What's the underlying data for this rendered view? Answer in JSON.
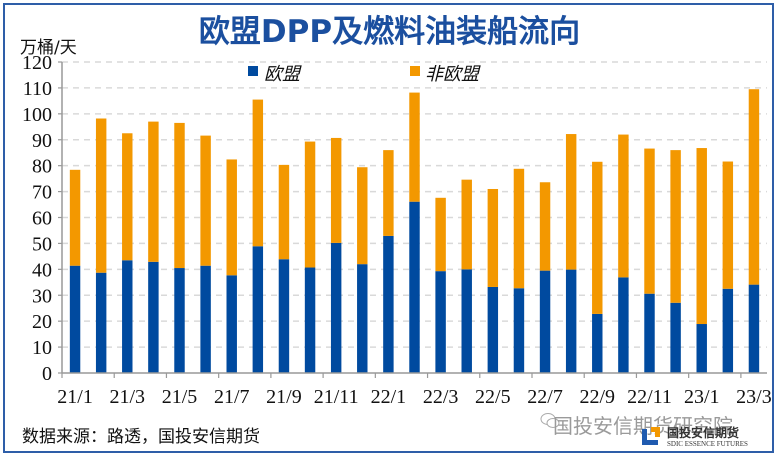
{
  "title": "欧盟DPP及燃料油装船流向",
  "unit_label": "万桶/天",
  "source": "数据来源：路透，国投安信期货",
  "watermark": "国投安信期货研究院",
  "logo": {
    "cn": "国投安信期货",
    "en": "SDIC ESSENCE FUTURES"
  },
  "colors": {
    "eu": "#004a9f",
    "non_eu": "#f39800",
    "title": "#1b4f9f",
    "frame": "#2e5ea8",
    "grid": "#d9d9d9",
    "axis": "#999999"
  },
  "chart_data": {
    "type": "bar",
    "stacked": true,
    "title": "欧盟DPP及燃料油装船流向",
    "ylabel": "万桶/天",
    "xlabel": "",
    "ylim": [
      0,
      120
    ],
    "yticks": [
      0,
      10,
      20,
      30,
      40,
      50,
      60,
      70,
      80,
      90,
      100,
      110,
      120
    ],
    "grid": true,
    "legend_position": "top-center",
    "categories": [
      "21/1",
      "21/2",
      "21/3",
      "21/4",
      "21/5",
      "21/6",
      "21/7",
      "21/8",
      "21/9",
      "21/10",
      "21/11",
      "21/12",
      "22/1",
      "22/2",
      "22/3",
      "22/4",
      "22/5",
      "22/6",
      "22/7",
      "22/8",
      "22/9",
      "22/10",
      "22/11",
      "22/12",
      "23/1",
      "23/2",
      "23/3"
    ],
    "xtick_labels": [
      "21/1",
      "21/3",
      "21/5",
      "21/7",
      "21/9",
      "21/11",
      "22/1",
      "22/3",
      "22/5",
      "22/7",
      "22/9",
      "22/11",
      "23/1",
      "23/3"
    ],
    "series": [
      {
        "name": "欧盟",
        "color": "#004a9f",
        "values": [
          41.4,
          38.7,
          43.5,
          42.9,
          40.5,
          41.4,
          37.7,
          48.9,
          43.9,
          40.7,
          50.2,
          42.0,
          52.9,
          66.1,
          39.3,
          40.0,
          33.2,
          32.7,
          39.5,
          39.9,
          22.8,
          36.9,
          30.6,
          27.1,
          18.9,
          32.5,
          34.1
        ]
      },
      {
        "name": "非欧盟",
        "color": "#f39800",
        "values": [
          37.0,
          59.5,
          49.0,
          54.1,
          56.0,
          50.2,
          44.7,
          56.6,
          36.4,
          48.6,
          40.5,
          37.4,
          33.1,
          42.1,
          28.3,
          34.6,
          37.8,
          46.1,
          34.1,
          52.3,
          58.7,
          55.1,
          56.0,
          58.9,
          67.9,
          49.1,
          75.4
        ]
      }
    ]
  }
}
